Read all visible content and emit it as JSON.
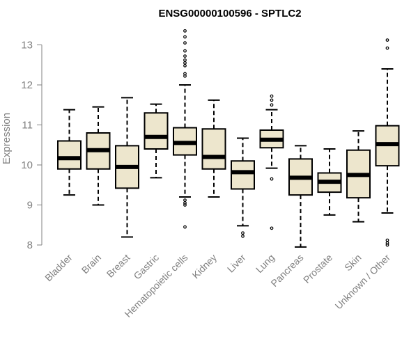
{
  "chart_data": {
    "type": "boxplot",
    "title": "ENSG00000100596 - SPTLC2",
    "ylabel": "Expression",
    "ylim": [
      8,
      13
    ],
    "yticks": [
      8,
      9,
      10,
      11,
      12,
      13
    ],
    "box_fill": "#ede6cd",
    "categories": [
      "Bladder",
      "Brain",
      "Breast",
      "Gastric",
      "Hematopoietic cells",
      "Kidney",
      "Liver",
      "Lung",
      "Pancreas",
      "Prostate",
      "Skin",
      "Unknown / Other"
    ],
    "boxes": [
      {
        "whisker_low": 9.25,
        "q1": 9.9,
        "median": 10.17,
        "q3": 10.6,
        "whisker_high": 11.38,
        "outliers": []
      },
      {
        "whisker_low": 9.0,
        "q1": 9.9,
        "median": 10.37,
        "q3": 10.8,
        "whisker_high": 11.45,
        "outliers": []
      },
      {
        "whisker_low": 8.2,
        "q1": 9.42,
        "median": 9.95,
        "q3": 10.48,
        "whisker_high": 11.68,
        "outliers": []
      },
      {
        "whisker_low": 9.68,
        "q1": 10.4,
        "median": 10.7,
        "q3": 11.3,
        "whisker_high": 11.52,
        "outliers": []
      },
      {
        "whisker_low": 9.2,
        "q1": 10.25,
        "median": 10.55,
        "q3": 10.93,
        "whisker_high": 12.0,
        "outliers": [
          13.35,
          13.2,
          13.05,
          12.85,
          12.72,
          12.62,
          12.55,
          12.48,
          12.28,
          12.22,
          9.12,
          9.05,
          9.0,
          8.45
        ]
      },
      {
        "whisker_low": 9.2,
        "q1": 9.9,
        "median": 10.2,
        "q3": 10.9,
        "whisker_high": 11.62,
        "outliers": []
      },
      {
        "whisker_low": 8.48,
        "q1": 9.4,
        "median": 9.82,
        "q3": 10.1,
        "whisker_high": 10.67,
        "outliers": [
          8.3,
          8.22
        ]
      },
      {
        "whisker_low": 9.92,
        "q1": 10.43,
        "median": 10.63,
        "q3": 10.87,
        "whisker_high": 11.38,
        "outliers": [
          11.72,
          11.62,
          11.5,
          9.65,
          8.42
        ]
      },
      {
        "whisker_low": 7.95,
        "q1": 9.25,
        "median": 9.68,
        "q3": 10.15,
        "whisker_high": 10.48,
        "outliers": []
      },
      {
        "whisker_low": 8.75,
        "q1": 9.32,
        "median": 9.58,
        "q3": 9.8,
        "whisker_high": 10.4,
        "outliers": []
      },
      {
        "whisker_low": 8.58,
        "q1": 9.18,
        "median": 9.75,
        "q3": 10.37,
        "whisker_high": 10.85,
        "outliers": []
      },
      {
        "whisker_low": 8.8,
        "q1": 9.98,
        "median": 10.52,
        "q3": 10.98,
        "whisker_high": 12.4,
        "outliers": [
          13.12,
          12.92,
          8.12,
          8.05,
          8.0
        ]
      }
    ]
  }
}
